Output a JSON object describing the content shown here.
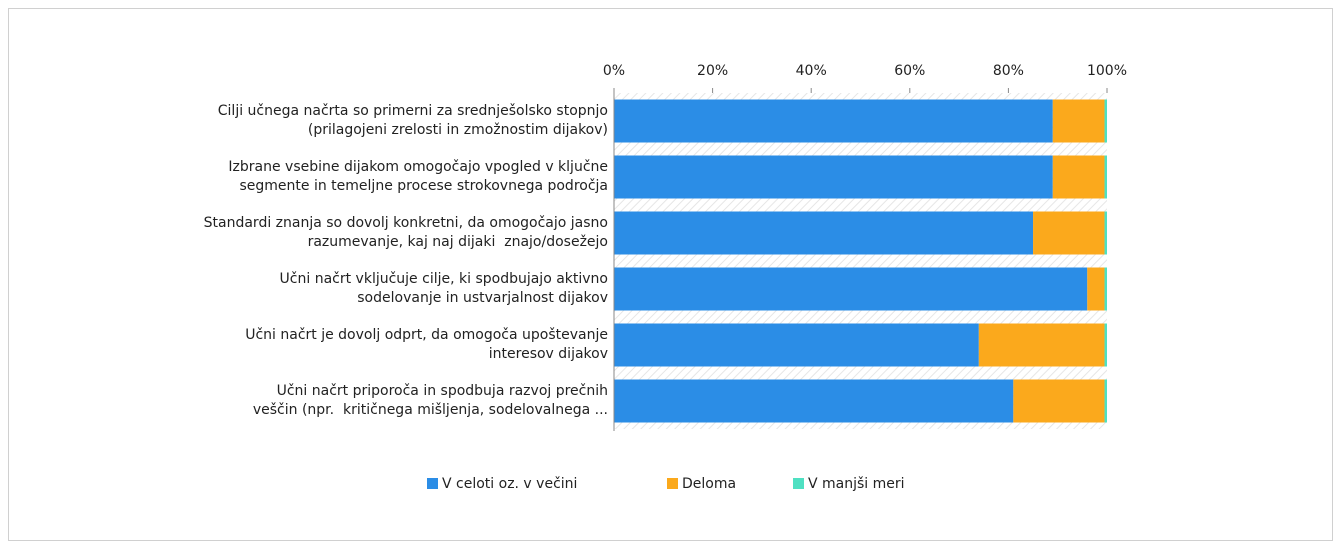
{
  "chart_data": {
    "type": "stacked-bar-horizontal",
    "categories": [
      "Cilji učnega načrta so primerni za srednješolsko stopnjo\n(prilagojeni zrelosti in zmožnostim dijakov)",
      "Izbrane vsebine dijakom omogočajo vpogled v ključne\nsegmente in temeljne procese strokovnega področja",
      "Standardi znanja so dovolj konkretni, da omogočajo jasno\nrazumevanje, kaj naj dijaki  znajo/dosežejo",
      "Učni načrt vključuje cilje, ki spodbujajo aktivno\nsodelovanje in ustvarjalnost dijakov",
      "Učni načrt je dovolj odprt, da omogoča upoštevanje\ninteresov dijakov",
      "Učni načrt priporoča in spodbuja razvoj prečnih\nveščin (npr.  kritičnega mišljenja, sodelovalnega ..."
    ],
    "series": [
      {
        "name": "V celoti oz. v večini",
        "color": "#2b8de6",
        "values": [
          89,
          89,
          85,
          96,
          74,
          81
        ]
      },
      {
        "name": "Deloma",
        "color": "#fba91c",
        "values": [
          10.5,
          10.5,
          14.5,
          3.5,
          25.5,
          18.5
        ]
      },
      {
        "name": "V manjši meri",
        "color": "#4fe0c2",
        "values": [
          0.5,
          0.5,
          0.5,
          0.5,
          0.5,
          0.5
        ]
      }
    ],
    "xlim": [
      0,
      100
    ],
    "xticks": [
      {
        "value": 0,
        "label": "0%"
      },
      {
        "value": 20,
        "label": "20%"
      },
      {
        "value": 40,
        "label": "40%"
      },
      {
        "value": 60,
        "label": "60%"
      },
      {
        "value": 80,
        "label": "80%"
      },
      {
        "value": 100,
        "label": "100%"
      }
    ],
    "legend": "bottom"
  }
}
